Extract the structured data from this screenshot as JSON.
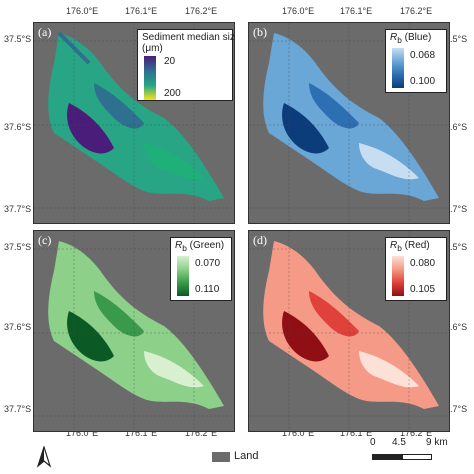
{
  "panels": [
    {
      "label": "(a)",
      "legend_title": "Sediment median size",
      "legend_unit": "(μm)",
      "values": [
        "20",
        "200"
      ]
    },
    {
      "label": "(b)",
      "legend_symbol": "R",
      "legend_sub": "b",
      "legend_name": "(Blue)",
      "values": [
        "0.068",
        "0.100"
      ]
    },
    {
      "label": "(c)",
      "legend_symbol": "R",
      "legend_sub": "b",
      "legend_name": "(Green)",
      "values": [
        "0.070",
        "0.110"
      ]
    },
    {
      "label": "(d)",
      "legend_symbol": "R",
      "legend_sub": "b",
      "legend_name": "(Red)",
      "values": [
        "0.080",
        "0.105"
      ]
    }
  ],
  "axes": {
    "lon_ticks": [
      "176.0°E",
      "176.1°E",
      "176.2°E"
    ],
    "lat_ticks": [
      "37.5°S",
      "37.6°S",
      "37.7°S"
    ]
  },
  "footer": {
    "land_label": "Land",
    "scale_labels": [
      "0",
      "4.5",
      "9 km"
    ]
  },
  "colors": {
    "land": "#6b6b6b",
    "sediment_ramp": [
      "#4b1d7a",
      "#2f6f8f",
      "#27a585",
      "#f2e51a"
    ],
    "blue_ramp": [
      "#c7ddf2",
      "#6aa6d6",
      "#2c6fb2",
      "#0b3d7a"
    ],
    "green_ramp": [
      "#d8f0d0",
      "#8cd08a",
      "#3a9a4b",
      "#0b5a25"
    ],
    "red_ramp": [
      "#fde0d6",
      "#f49a86",
      "#e0413a",
      "#8f0f14"
    ]
  },
  "icons": {
    "north_arrow": "north-arrow-icon"
  }
}
